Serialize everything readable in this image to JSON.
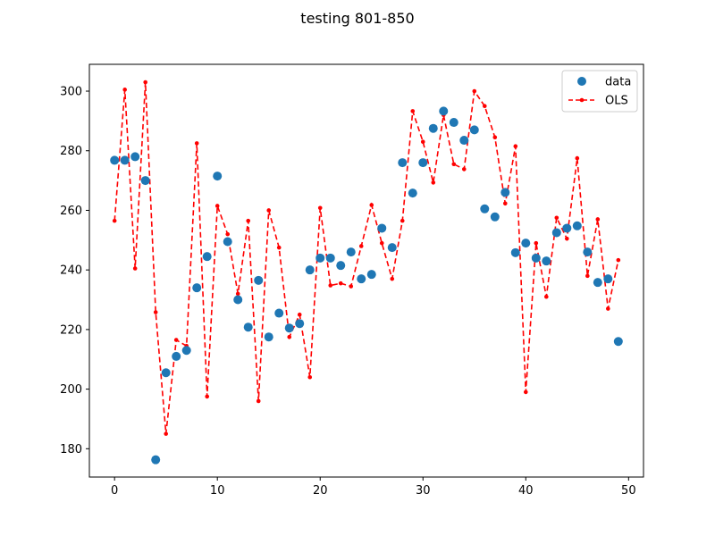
{
  "chart_data": {
    "type": "scatter",
    "title": "testing 801-850",
    "xlabel": "",
    "ylabel": "",
    "xlim": [
      -2.45,
      51.45
    ],
    "ylim": [
      170.5,
      309.0
    ],
    "xticks": [
      0,
      10,
      20,
      30,
      40,
      50
    ],
    "yticks": [
      180,
      200,
      220,
      240,
      260,
      280,
      300
    ],
    "grid": false,
    "legend_position": "top-right",
    "series": [
      {
        "name": "data",
        "style": "markers",
        "color": "#1f77b4",
        "x": [
          0,
          1,
          2,
          3,
          4,
          5,
          6,
          7,
          8,
          9,
          10,
          11,
          12,
          13,
          14,
          15,
          16,
          17,
          18,
          19,
          20,
          21,
          22,
          23,
          24,
          25,
          26,
          27,
          28,
          29,
          30,
          31,
          32,
          33,
          34,
          35,
          36,
          37,
          38,
          39,
          40,
          41,
          42,
          43,
          44,
          45,
          46,
          47,
          48,
          49
        ],
        "values": [
          276.8,
          276.8,
          278.0,
          270.0,
          176.3,
          205.5,
          211.0,
          213.0,
          234.0,
          244.5,
          271.5,
          249.5,
          230.0,
          220.8,
          236.5,
          217.5,
          225.5,
          220.5,
          222.0,
          240.0,
          244.0,
          244.0,
          241.5,
          246.0,
          237.0,
          238.5,
          254.0,
          247.5,
          276.0,
          265.8,
          276.0,
          287.5,
          293.3,
          289.5,
          283.5,
          287.0,
          260.5,
          257.8,
          266.0,
          245.8,
          249.0,
          244.0,
          243.0,
          252.5,
          254.0,
          254.8,
          246.0,
          235.8,
          237.0,
          216.0
        ]
      },
      {
        "name": "OLS",
        "style": "dashed-line-with-dots",
        "color": "#ff0000",
        "x": [
          0,
          1,
          2,
          3,
          4,
          5,
          6,
          7,
          8,
          9,
          10,
          11,
          12,
          13,
          14,
          15,
          16,
          17,
          18,
          19,
          20,
          21,
          22,
          23,
          24,
          25,
          26,
          27,
          28,
          29,
          30,
          31,
          32,
          33,
          34,
          35,
          36,
          37,
          38,
          39,
          40,
          41,
          42,
          43,
          44,
          45,
          46,
          47,
          48,
          49
        ],
        "values": [
          256.5,
          300.5,
          240.5,
          303.0,
          225.8,
          185.0,
          216.5,
          214.5,
          282.5,
          197.5,
          261.5,
          252.0,
          232.0,
          256.5,
          196.0,
          260.0,
          247.5,
          217.5,
          225.0,
          204.0,
          260.8,
          234.8,
          235.5,
          234.5,
          248.0,
          261.8,
          249.0,
          237.0,
          256.5,
          293.3,
          283.0,
          269.3,
          292.0,
          275.5,
          273.8,
          300.0,
          295.0,
          284.5,
          262.3,
          281.5,
          199.0,
          249.0,
          231.0,
          257.5,
          250.5,
          277.5,
          238.0,
          257.0,
          227.0,
          243.3
        ]
      }
    ]
  }
}
